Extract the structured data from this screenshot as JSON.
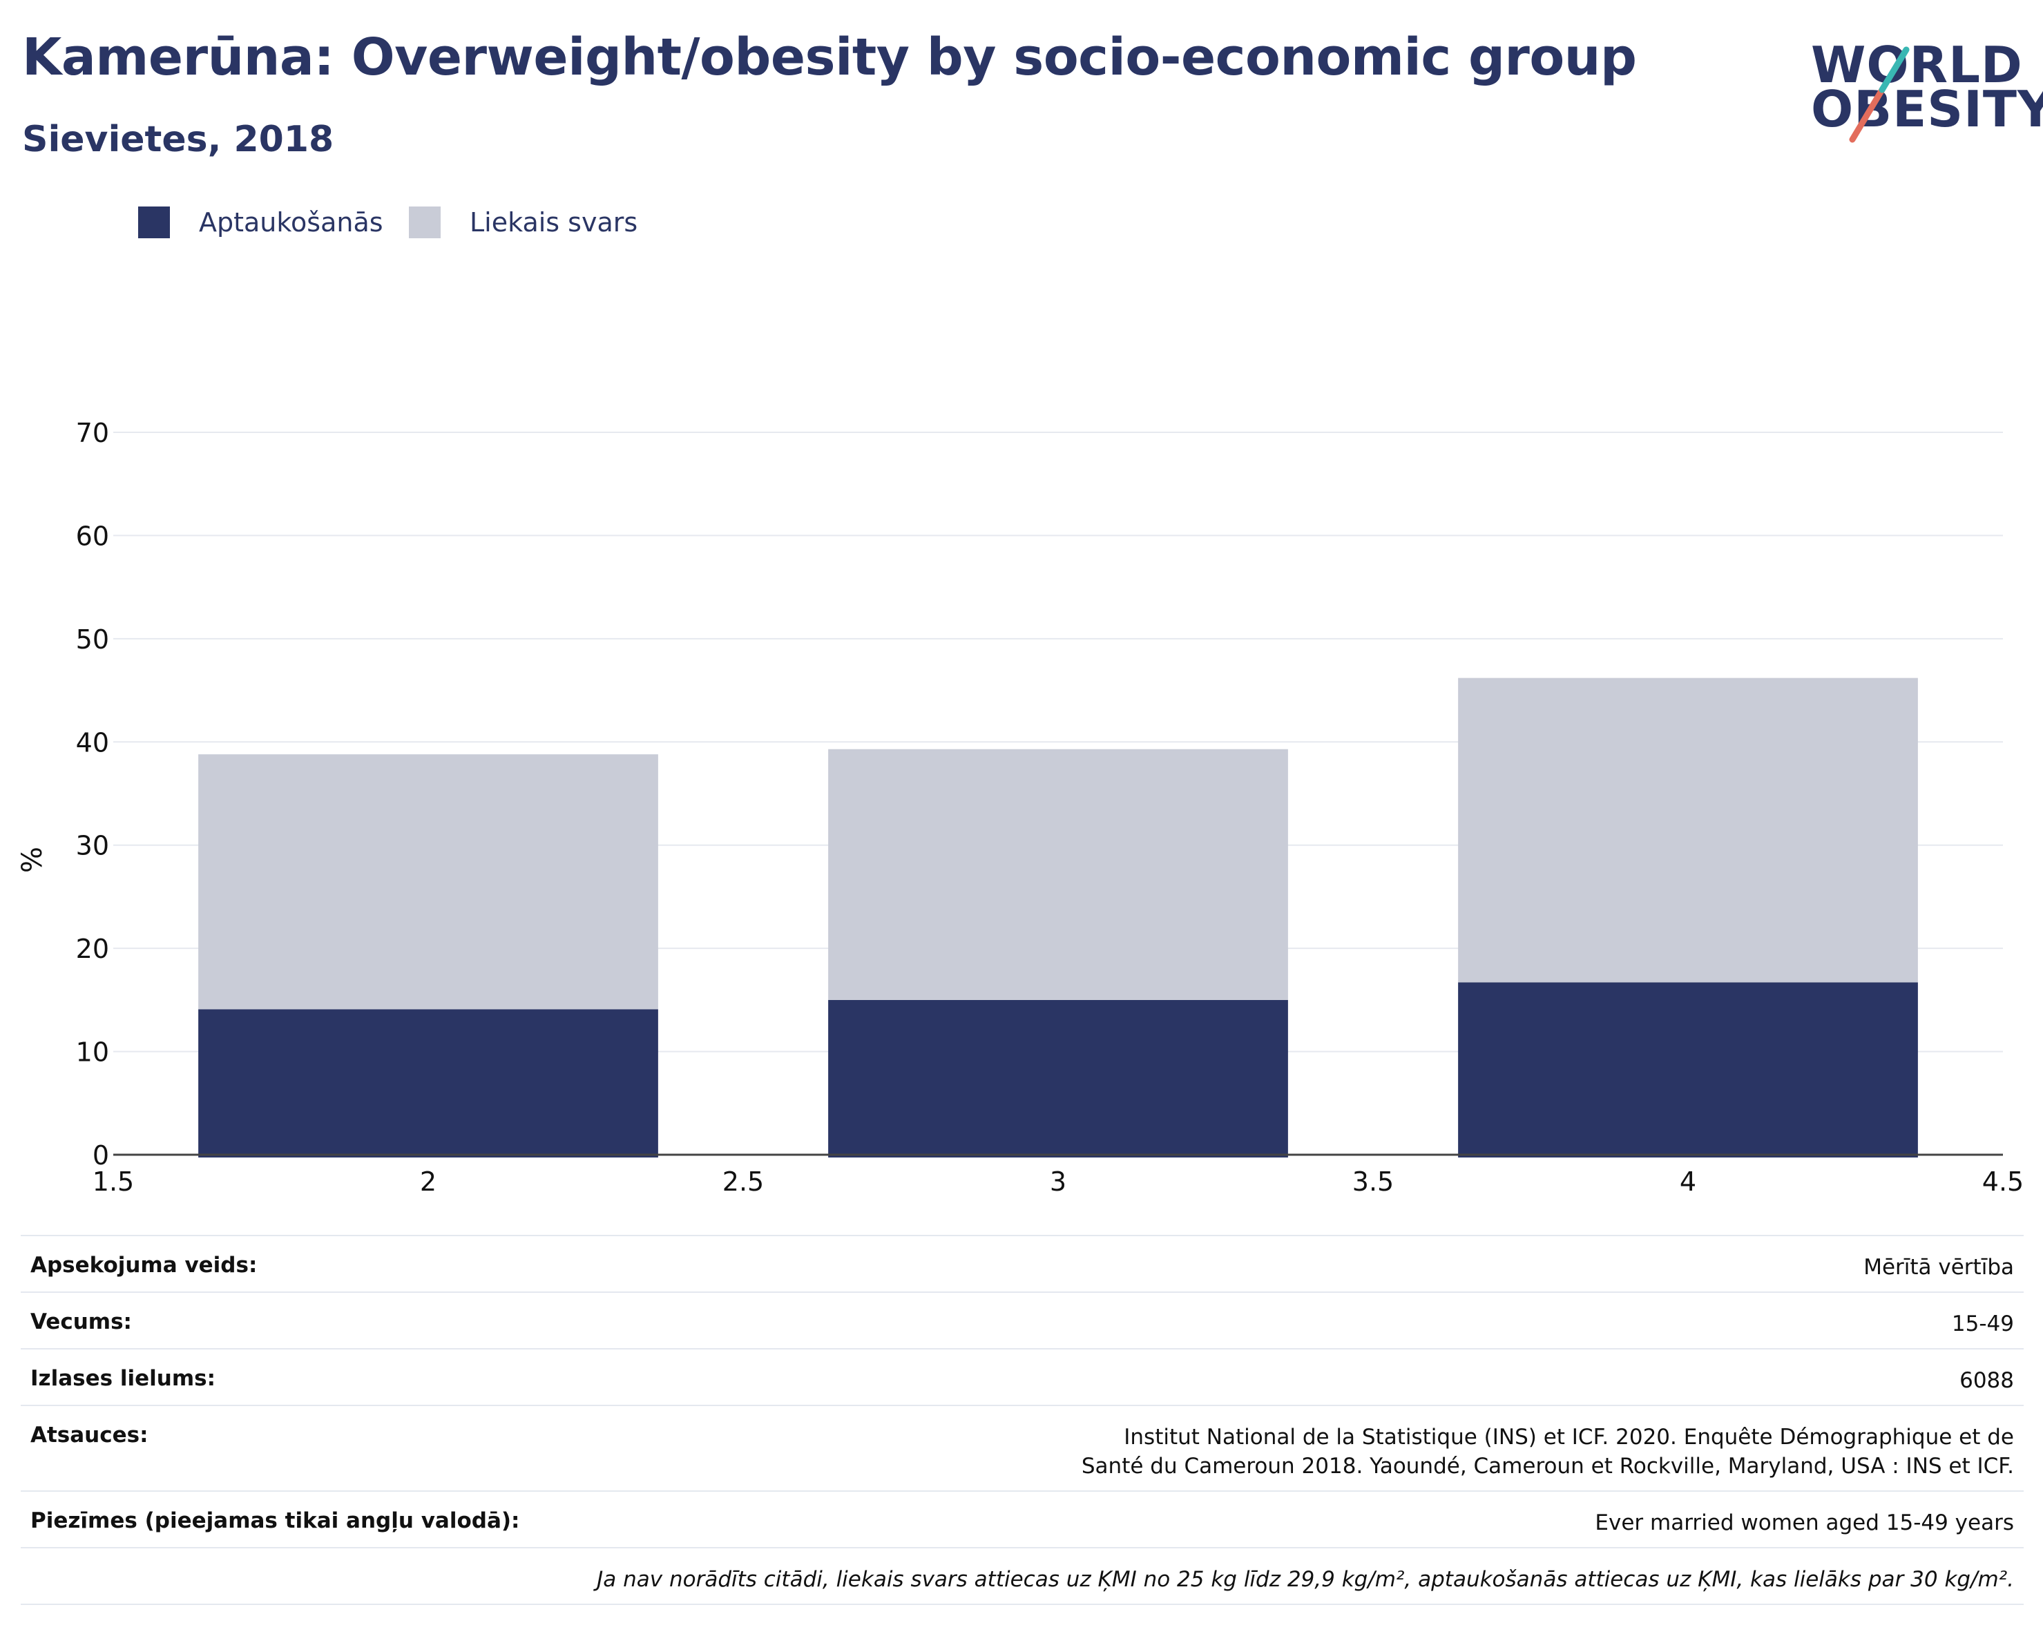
{
  "title": "Kamerūna: Overweight/obesity by socio-economic group",
  "subtitle": "Sievietes, 2018",
  "logo": {
    "line1": "WORLD",
    "line2": "OBESITY"
  },
  "colors": {
    "obesity": "#2a3564",
    "overweight": "#c9ccd7",
    "text": "#2a3564",
    "grid": "#e6e9ef",
    "logo_teal": "#39b7b3",
    "logo_coral": "#e36d5c"
  },
  "legend": [
    {
      "label": "Aptaukošanās",
      "color": "#2a3564"
    },
    {
      "label": "Liekais svars",
      "color": "#c9ccd7"
    }
  ],
  "chart_data": {
    "type": "bar",
    "stacked": true,
    "x": [
      2,
      3,
      4
    ],
    "series": [
      {
        "name": "Aptaukošanās",
        "values": [
          14.1,
          15.0,
          16.7
        ]
      },
      {
        "name": "Liekais svars",
        "values": [
          24.7,
          24.3,
          29.5
        ]
      }
    ],
    "xlim": [
      1.5,
      4.5
    ],
    "xticks": [
      "1.5",
      "2",
      "2.5",
      "3",
      "3.5",
      "4",
      "4.5"
    ],
    "ylim": [
      0,
      70
    ],
    "yticks": [
      "0",
      "10",
      "20",
      "30",
      "40",
      "50",
      "60",
      "70"
    ],
    "ylabel": "%",
    "grid": true,
    "legend_position": "top-left"
  },
  "info_rows": [
    {
      "key": "Apsekojuma veids:",
      "value": "Mērītā vērtība"
    },
    {
      "key": "Vecums:",
      "value": "15-49"
    },
    {
      "key": "Izlases lielums:",
      "value": "6088"
    },
    {
      "key": "Atsauces:",
      "value": "Institut National de la Statistique (INS) et ICF. 2020. Enquête Démographique et de Santé du Cameroun 2018. Yaoundé, Cameroun et Rockville, Maryland, USA : INS et ICF."
    },
    {
      "key": "Piezīmes (pieejamas tikai angļu valodā):",
      "value": "Ever married women aged 15-49 years"
    },
    {
      "key": "",
      "value": "Ja nav norādīts citādi, liekais svars attiecas uz ĶMI no 25 kg līdz 29,9 kg/m², aptaukošanās attiecas uz ĶMI, kas lielāks par 30 kg/m²."
    }
  ]
}
